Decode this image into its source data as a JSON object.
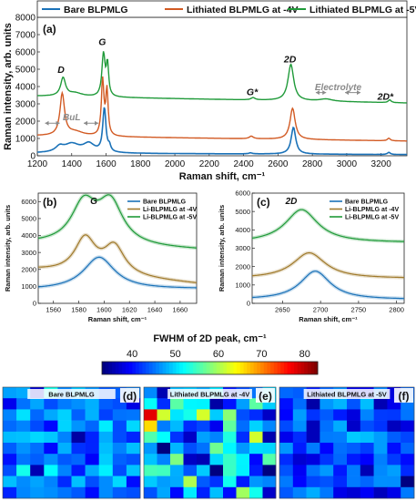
{
  "chart_data": [
    {
      "panel": "(a)",
      "type": "line",
      "xlabel": "Raman shift, cm⁻¹",
      "ylabel": "Raman intensity, arb. units",
      "xlim": [
        1200,
        3350
      ],
      "ylim": [
        0,
        8000
      ],
      "xticks": [
        1200,
        1400,
        1600,
        1800,
        2000,
        2200,
        2400,
        2600,
        2800,
        3000,
        3200
      ],
      "yticks": [
        0,
        1000,
        2000,
        3000,
        4000,
        5000,
        6000,
        7000,
        8000
      ],
      "legend": "top",
      "series": [
        {
          "name": "Bare BLPMLG",
          "color": "#1b72b8",
          "width": 1.6,
          "base": 150,
          "tilt": -80,
          "peaks": [
            [
              1330,
              300,
              28
            ],
            [
              1400,
              500,
              55
            ],
            [
              1500,
              500,
              40
            ],
            [
              1590,
              2550,
              11
            ],
            [
              1620,
              300,
              8
            ],
            [
              2440,
              60,
              12
            ],
            [
              2690,
              1550,
              16
            ],
            [
              3245,
              120,
              10
            ]
          ]
        },
        {
          "name": "Lithiated BLPMLG at -4V",
          "color": "#d25a23",
          "width": 1.4,
          "base": 1150,
          "tilt": -300,
          "peaks": [
            [
              1345,
              2400,
              16
            ],
            [
              1420,
              250,
              60
            ],
            [
              1580,
              3200,
              9
            ],
            [
              1605,
              2600,
              8
            ],
            [
              2445,
              150,
              14
            ],
            [
              2685,
              1800,
              18
            ],
            [
              3245,
              150,
              10
            ]
          ]
        },
        {
          "name": "Lithiated BLPMLG at -5V",
          "color": "#1f9a39",
          "width": 1.4,
          "base": 3450,
          "tilt": -400,
          "peaks": [
            [
              1350,
              1050,
              17
            ],
            [
              1420,
              200,
              50
            ],
            [
              1585,
              2450,
              11
            ],
            [
              1608,
              1800,
              8
            ],
            [
              2455,
              130,
              14
            ],
            [
              2675,
              2100,
              20
            ],
            [
              2880,
              130,
              45
            ],
            [
              3250,
              160,
              10
            ]
          ]
        }
      ],
      "annotations": [
        {
          "text": "D",
          "x": 1338,
          "y": 4800
        },
        {
          "text": "G",
          "x": 1578,
          "y": 6400
        },
        {
          "text": "2D",
          "x": 2670,
          "y": 5400
        },
        {
          "text": "G*",
          "x": 2450,
          "y": 3500
        },
        {
          "text": "Electrolyte",
          "x": 2950,
          "y": 3800
        },
        {
          "text": "2D*",
          "x": 3225,
          "y": 3250
        },
        {
          "text": "BuL",
          "x": 1400,
          "y": 2050
        }
      ]
    },
    {
      "panel": "(b)",
      "type": "line",
      "title": "G",
      "xlabel": "Raman shift, cm⁻¹",
      "ylabel": "Raman intensity, arb. units",
      "xlim": [
        1548,
        1673
      ],
      "ylim": [
        0,
        6500
      ],
      "xticks": [
        1560,
        1580,
        1600,
        1620,
        1640,
        1660
      ],
      "yticks": [
        0,
        1000,
        2000,
        3000,
        4000,
        5000,
        6000
      ],
      "legend": "top-right",
      "series": [
        {
          "name": "Bare BLPMLG",
          "color": "#1b72b8",
          "base": 800,
          "tilt": 50,
          "peaks": [
            [
              1596,
              1900,
              15
            ]
          ]
        },
        {
          "name": "Li-BLPMLG at -4V",
          "color": "#a07a2c",
          "base": 1950,
          "tilt": -800,
          "peaks": [
            [
              1585,
              2050,
              10
            ],
            [
              1608,
              1700,
              10
            ]
          ]
        },
        {
          "name": "Li-BLPMLG at -5V",
          "color": "#1f9a39",
          "base": 3500,
          "tilt": -350,
          "peaks": [
            [
              1584,
              2350,
              12
            ],
            [
              1605,
              2450,
              12
            ]
          ]
        }
      ]
    },
    {
      "panel": "(c)",
      "type": "line",
      "title": "2D",
      "xlabel": "Raman shift, cm⁻¹",
      "ylabel": "Raman intensity, arb. units",
      "xlim": [
        2610,
        2810
      ],
      "ylim": [
        0,
        6000
      ],
      "xticks": [
        2650,
        2700,
        2750,
        2800
      ],
      "yticks": [
        0,
        1000,
        2000,
        3000,
        4000,
        5000,
        6000
      ],
      "legend": "top-right",
      "series": [
        {
          "name": "Bare BLPMLG",
          "color": "#1b72b8",
          "base": 200,
          "tilt": 0,
          "peaks": [
            [
              2693,
              1550,
              24
            ]
          ]
        },
        {
          "name": "Li-BLPMLG at -4V",
          "color": "#a07a2c",
          "base": 1350,
          "tilt": 0,
          "peaks": [
            [
              2685,
              1400,
              26
            ]
          ]
        },
        {
          "name": "Li-BLPMLG at -5V",
          "color": "#1f9a39",
          "base": 3300,
          "tilt": 0,
          "peaks": [
            [
              2675,
              1800,
              26
            ]
          ]
        }
      ]
    },
    {
      "panel": "colorbar",
      "type": "heatmap",
      "title": "FWHM of 2D peak, cm⁻¹",
      "range": [
        33,
        83
      ],
      "ticks": [
        40,
        50,
        60,
        70,
        80
      ]
    },
    {
      "panel": "(d)",
      "type": "heatmap",
      "title": "Bare BLPMLG",
      "rows": 10,
      "cols": 10,
      "seed": 7,
      "mean": 45,
      "spread": 8
    },
    {
      "panel": "(e)",
      "type": "heatmap",
      "title": "Lithiated BLPMLG at -4V",
      "rows": 10,
      "cols": 10,
      "seed": 13,
      "mean": 47,
      "spread": 12,
      "hot_cells": [
        [
          2,
          0,
          78
        ],
        [
          3,
          0,
          66
        ],
        [
          2,
          1,
          62
        ]
      ]
    },
    {
      "panel": "(f)",
      "type": "heatmap",
      "title": "Lithiated BLPMLG at -5V",
      "rows": 10,
      "cols": 10,
      "seed": 29,
      "mean": 42,
      "spread": 7
    }
  ]
}
